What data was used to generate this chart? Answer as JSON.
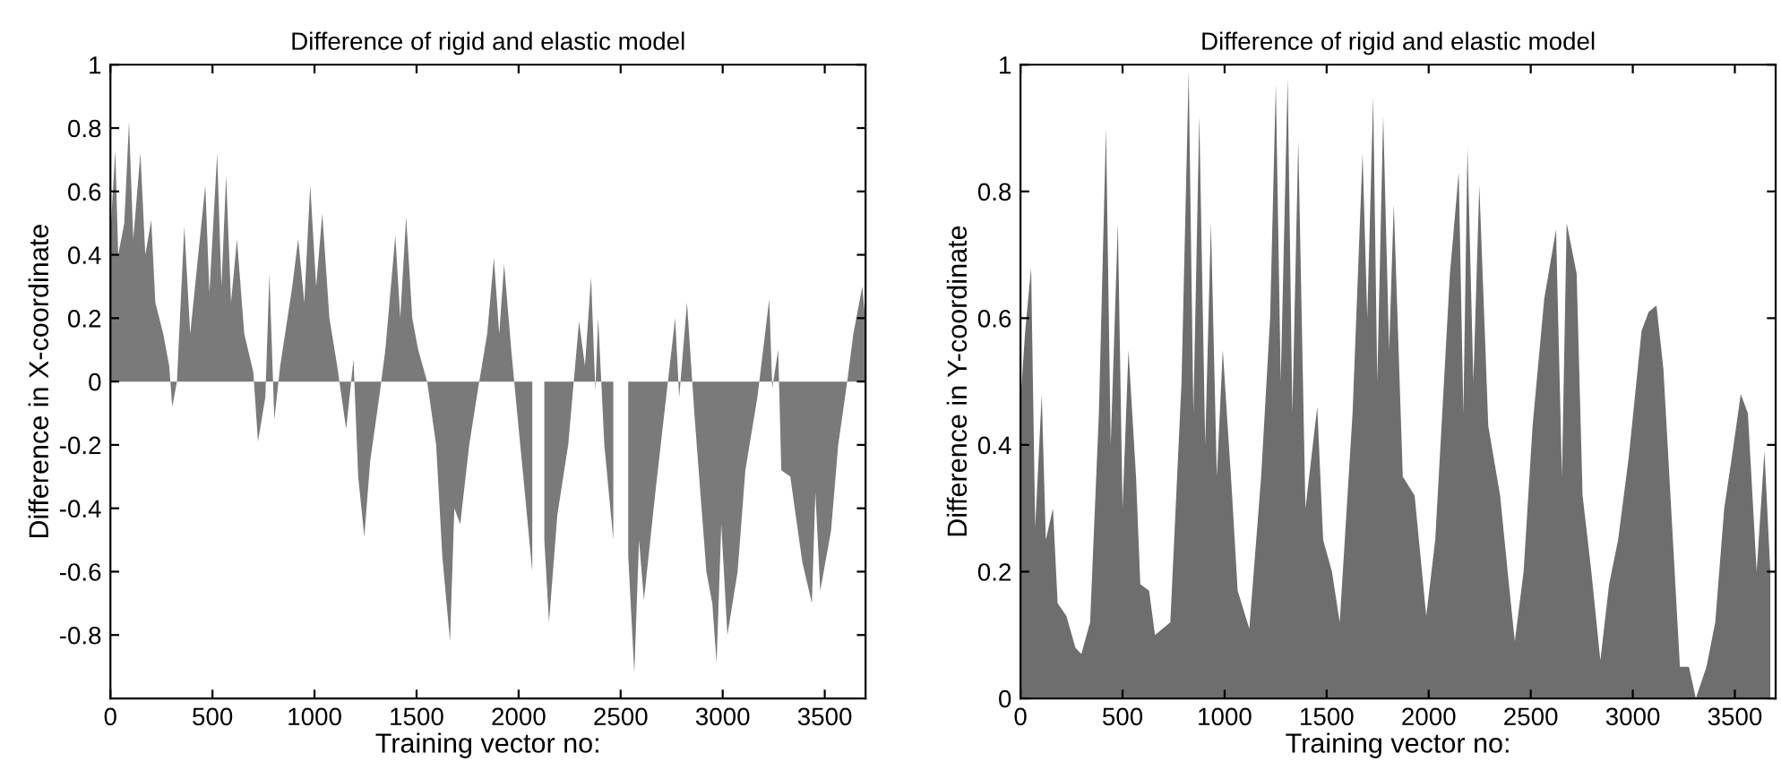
{
  "chart_data": [
    {
      "type": "area",
      "title": "Difference of rigid and elastic model",
      "xlabel": "Training vector no:",
      "ylabel": "Difference in X-coordinate",
      "x": [
        0,
        24,
        38,
        68,
        91,
        112,
        147,
        171,
        200,
        220,
        259,
        288,
        303,
        326,
        362,
        391,
        465,
        485,
        523,
        544,
        567,
        591,
        620,
        656,
        700,
        723,
        759,
        779,
        803,
        832,
        891,
        920,
        950,
        979,
        1008,
        1038,
        1073,
        1111,
        1155,
        1191,
        1214,
        1244,
        1273,
        1317,
        1347,
        1396,
        1420,
        1449,
        1479,
        1508,
        1552,
        1596,
        1626,
        1664,
        1685,
        1714,
        1758,
        1802,
        1846,
        1879,
        1905,
        1929,
        1964,
        1993,
        2023,
        2067,
        2096,
        2126,
        2149,
        2190,
        2243,
        2296,
        2325,
        2355,
        2376,
        2390,
        2420,
        2464,
        2508,
        2537,
        2567,
        2590,
        2614,
        2670,
        2714,
        2767,
        2787,
        2825,
        2861,
        2920,
        2949,
        2970,
        2993,
        3023,
        3073,
        3111,
        3170,
        3228,
        3243,
        3272,
        3287,
        3331,
        3390,
        3437,
        3454,
        3478,
        3531,
        3566,
        3610,
        3640,
        3684,
        3698
      ],
      "series": [
        {
          "color": "#7a7a7a",
          "values": [
            0.47,
            0.73,
            0.4,
            0.5,
            0.82,
            0.45,
            0.72,
            0.4,
            0.51,
            0.25,
            0.15,
            0.05,
            -0.08,
            0.0,
            0.49,
            0.15,
            0.62,
            0.28,
            0.72,
            0.3,
            0.65,
            0.25,
            0.45,
            0.15,
            0.03,
            -0.19,
            -0.05,
            0.34,
            -0.12,
            0.05,
            0.3,
            0.45,
            0.25,
            0.62,
            0.3,
            0.53,
            0.2,
            0.05,
            -0.15,
            0.07,
            -0.3,
            -0.49,
            -0.25,
            -0.05,
            0.1,
            0.46,
            0.2,
            0.52,
            0.2,
            0.1,
            0.0,
            -0.2,
            -0.55,
            -0.82,
            -0.4,
            -0.45,
            -0.2,
            -0.02,
            0.15,
            0.39,
            0.15,
            0.37,
            0.1,
            -0.1,
            -0.3,
            -0.6,
            null,
            -0.5,
            -0.76,
            -0.42,
            -0.2,
            0.19,
            0.05,
            0.33,
            -0.03,
            0.2,
            -0.2,
            -0.5,
            null,
            -0.55,
            -0.92,
            -0.5,
            -0.69,
            -0.35,
            -0.1,
            0.2,
            -0.05,
            0.25,
            -0.1,
            -0.6,
            -0.7,
            -0.89,
            -0.45,
            -0.8,
            -0.6,
            -0.28,
            -0.05,
            0.26,
            -0.02,
            0.1,
            -0.28,
            -0.3,
            -0.57,
            -0.7,
            -0.35,
            -0.66,
            -0.47,
            -0.2,
            0.0,
            0.15,
            0.3,
            0.2
          ]
        }
      ],
      "xlim": [
        0,
        3700
      ],
      "xticks": [
        0,
        500,
        1000,
        1500,
        2000,
        2500,
        3000,
        3500
      ],
      "ylim": [
        -1,
        1
      ],
      "yticks": [
        -0.8,
        -0.6,
        -0.4,
        -0.2,
        0,
        0.2,
        0.4,
        0.6,
        0.8,
        1
      ]
    },
    {
      "type": "area",
      "title": "Difference of rigid and elastic model",
      "xlabel": "Training vector no:",
      "ylabel": "Difference in Y-coordinate",
      "x": [
        0,
        23,
        52,
        72,
        104,
        124,
        159,
        182,
        225,
        269,
        298,
        341,
        384,
        419,
        442,
        477,
        500,
        529,
        566,
        587,
        630,
        659,
        734,
        789,
        824,
        847,
        876,
        905,
        933,
        962,
        991,
        1035,
        1064,
        1121,
        1179,
        1223,
        1251,
        1275,
        1309,
        1332,
        1361,
        1396,
        1454,
        1483,
        1526,
        1564,
        1627,
        1676,
        1699,
        1728,
        1748,
        1777,
        1806,
        1829,
        1873,
        1931,
        1988,
        2032,
        2104,
        2147,
        2170,
        2190,
        2219,
        2248,
        2292,
        2350,
        2393,
        2422,
        2465,
        2509,
        2566,
        2624,
        2653,
        2676,
        2725,
        2754,
        2797,
        2841,
        2884,
        2928,
        2980,
        3043,
        3078,
        3116,
        3150,
        3188,
        3231,
        3275,
        3309,
        3361,
        3404,
        3448,
        3485,
        3529,
        3564,
        3607,
        3645,
        3674
      ],
      "series": [
        {
          "color": "#6e6e6e",
          "values": [
            0.47,
            0.58,
            0.68,
            0.27,
            0.48,
            0.25,
            0.3,
            0.15,
            0.13,
            0.08,
            0.07,
            0.12,
            0.45,
            0.9,
            0.4,
            0.75,
            0.3,
            0.55,
            0.35,
            0.18,
            0.17,
            0.1,
            0.12,
            0.5,
            0.99,
            0.45,
            0.92,
            0.4,
            0.75,
            0.35,
            0.55,
            0.33,
            0.17,
            0.11,
            0.35,
            0.6,
            0.97,
            0.5,
            0.98,
            0.45,
            0.88,
            0.3,
            0.46,
            0.25,
            0.2,
            0.12,
            0.45,
            0.86,
            0.6,
            0.95,
            0.5,
            0.92,
            0.55,
            0.78,
            0.35,
            0.32,
            0.13,
            0.25,
            0.67,
            0.83,
            0.45,
            0.87,
            0.5,
            0.81,
            0.43,
            0.32,
            0.18,
            0.09,
            0.2,
            0.43,
            0.63,
            0.74,
            0.35,
            0.75,
            0.67,
            0.32,
            0.2,
            0.06,
            0.18,
            0.25,
            0.38,
            0.58,
            0.61,
            0.62,
            0.52,
            0.3,
            0.05,
            0.05,
            0.0,
            0.05,
            0.12,
            0.3,
            0.38,
            0.48,
            0.45,
            0.2,
            0.39,
            0.2
          ]
        }
      ],
      "xlim": [
        0,
        3700
      ],
      "xticks": [
        0,
        500,
        1000,
        1500,
        2000,
        2500,
        3000,
        3500
      ],
      "ylim": [
        0,
        1
      ],
      "yticks": [
        0,
        0.2,
        0.4,
        0.6,
        0.8,
        1
      ]
    }
  ]
}
